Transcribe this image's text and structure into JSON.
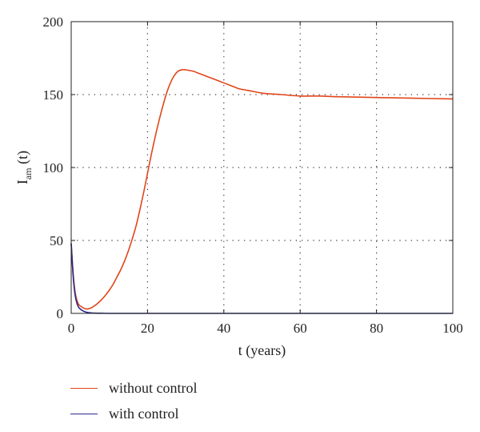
{
  "chart_data": {
    "type": "line",
    "title": "",
    "xlabel": "t (years)",
    "ylabel": {
      "base": "I",
      "sub": "am",
      "suffix": " (t)"
    },
    "xlim": [
      0,
      100
    ],
    "ylim": [
      0,
      200
    ],
    "xticks": [
      0,
      20,
      40,
      60,
      80,
      100
    ],
    "yticks": [
      0,
      50,
      100,
      150,
      200
    ],
    "grid": true,
    "legend_position": "below",
    "series": [
      {
        "name": "without control",
        "color": "#e0461a",
        "x": [
          0,
          0.5,
          1,
          1.5,
          2,
          3,
          4,
          5,
          6,
          7,
          8,
          9,
          10,
          11,
          12,
          13,
          14,
          15,
          16,
          17,
          18,
          19,
          20,
          21,
          22,
          23,
          24,
          25,
          26,
          27,
          28,
          29,
          30,
          31,
          32,
          33,
          34,
          35,
          36,
          38,
          40,
          42,
          44,
          46,
          48,
          50,
          52,
          55,
          60,
          65,
          70,
          80,
          90,
          100
        ],
        "y": [
          48,
          28,
          15,
          9,
          6,
          4,
          3,
          3.5,
          5,
          7,
          9.5,
          12.5,
          16,
          20,
          25,
          30,
          36,
          43,
          51,
          60,
          71,
          83,
          96,
          109,
          121,
          132,
          142,
          151,
          158,
          163,
          166,
          167,
          167,
          166.5,
          166,
          165,
          164,
          163,
          162,
          160,
          158,
          156,
          154,
          153,
          152,
          151,
          150.5,
          150,
          149,
          149,
          148.5,
          148,
          147.5,
          147
        ]
      },
      {
        "name": "with control",
        "color": "#2e2a8a",
        "x": [
          0,
          0.5,
          1,
          1.5,
          2,
          3,
          4,
          5,
          6,
          8,
          10,
          15,
          20,
          30,
          40,
          60,
          80,
          100
        ],
        "y": [
          48,
          26,
          13,
          7,
          4,
          1.8,
          0.8,
          0.4,
          0.2,
          0.1,
          0,
          0,
          0,
          0,
          0,
          0,
          0,
          0
        ]
      }
    ]
  }
}
